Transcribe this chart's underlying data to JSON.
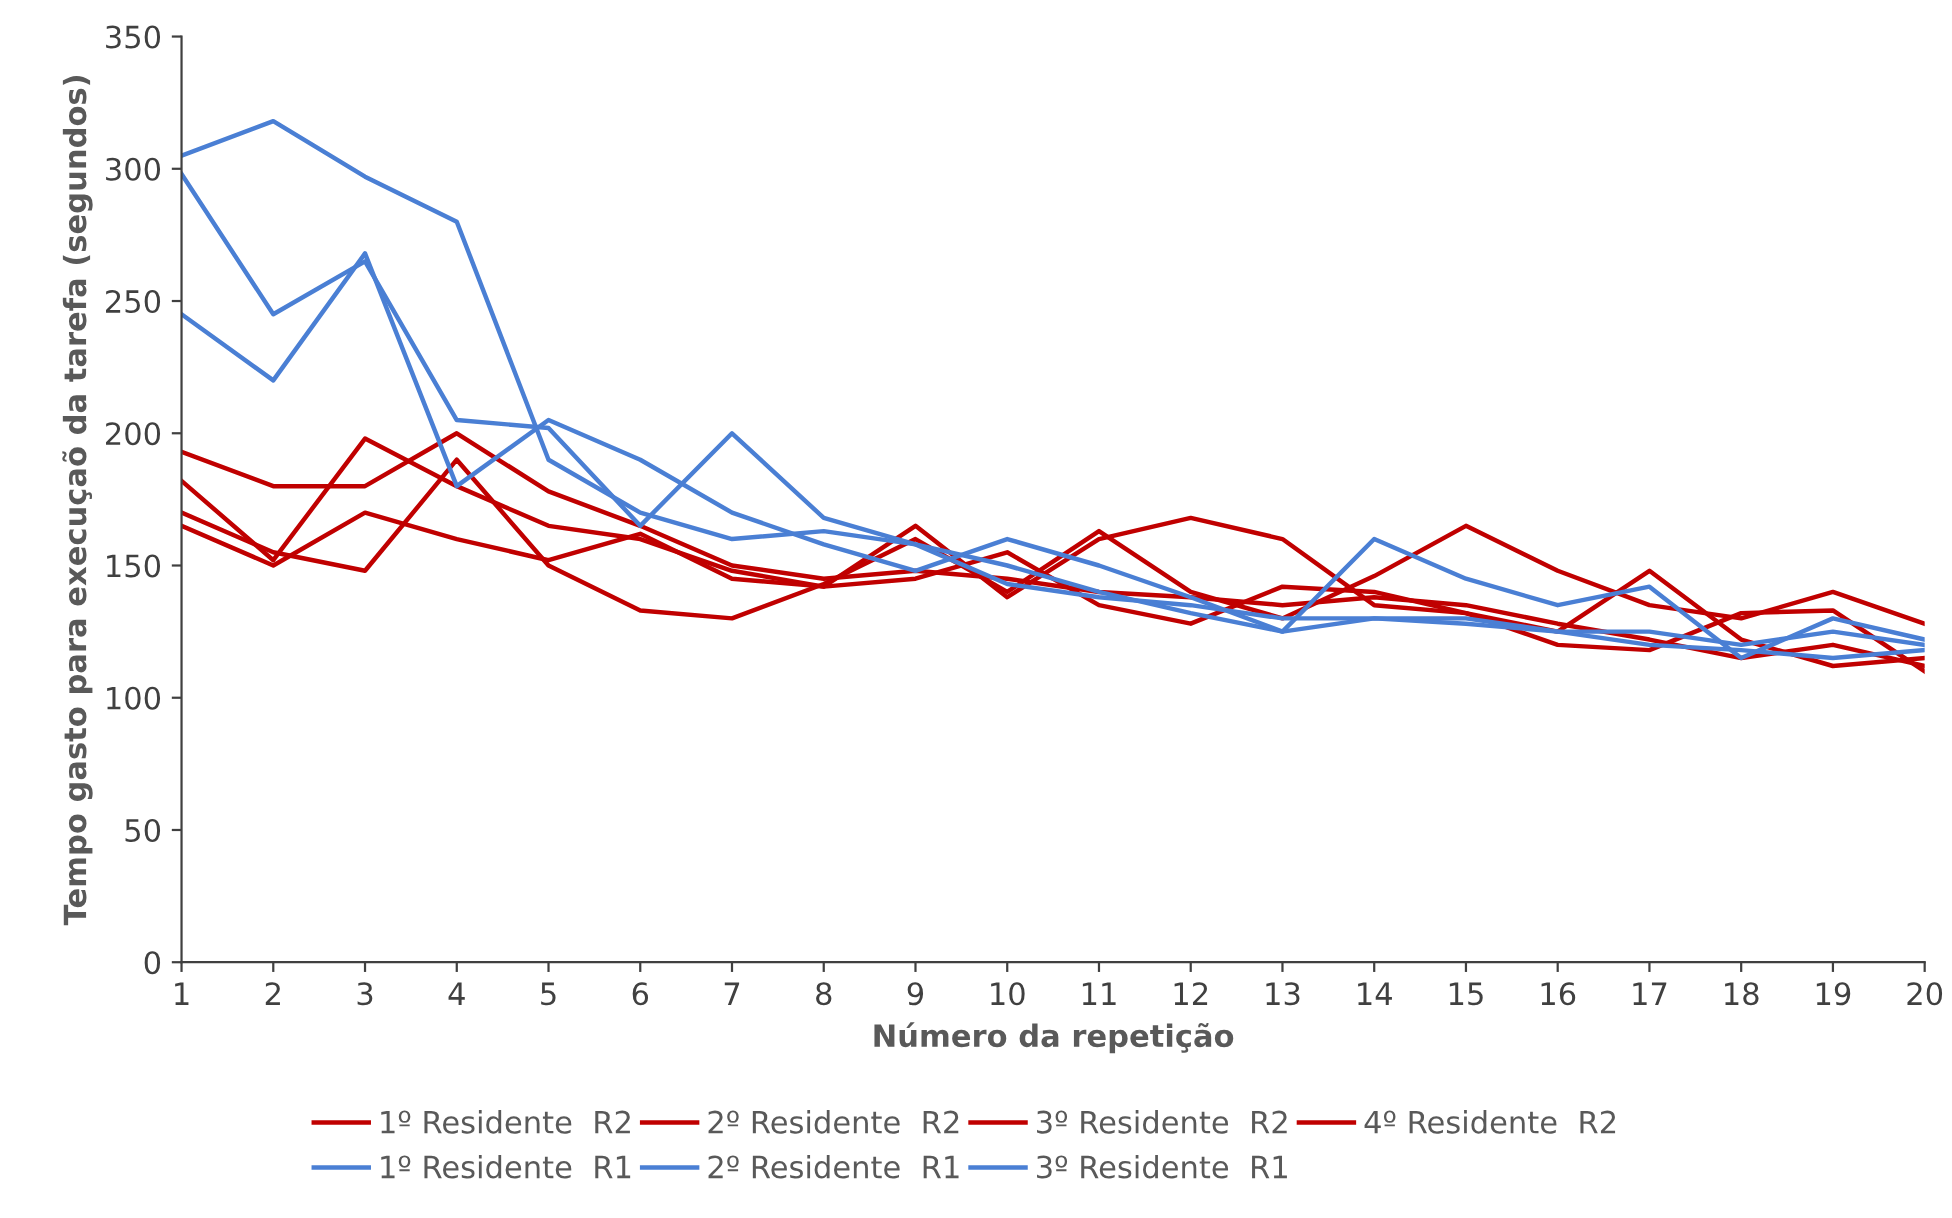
{
  "chart_data": {
    "type": "line",
    "xlabel": "Número da repetição",
    "ylabel": "Tempo gasto para execuçaõ da tarefa (segundos)",
    "x": [
      1,
      2,
      3,
      4,
      5,
      6,
      7,
      8,
      9,
      10,
      11,
      12,
      13,
      14,
      15,
      16,
      17,
      18,
      19,
      20
    ],
    "xlim": [
      1,
      20
    ],
    "xticks": [
      1,
      2,
      3,
      4,
      5,
      6,
      7,
      8,
      9,
      10,
      11,
      12,
      13,
      14,
      15,
      16,
      17,
      18,
      19,
      20
    ],
    "ylim": [
      0,
      350
    ],
    "yticks": [
      0,
      50,
      100,
      150,
      200,
      250,
      300,
      350
    ],
    "grid": false,
    "legend": "bottom",
    "marker": "none",
    "line_style": "solid",
    "series": [
      {
        "name": "1º Residente  R2",
        "color": "#c00000",
        "values": [
          193,
          180,
          180,
          200,
          178,
          165,
          150,
          145,
          148,
          145,
          140,
          138,
          135,
          138,
          135,
          128,
          122,
          115,
          120,
          112
        ]
      },
      {
        "name": "2º Residente  R2",
        "color": "#c00000",
        "values": [
          182,
          152,
          198,
          180,
          165,
          160,
          148,
          142,
          165,
          138,
          160,
          168,
          160,
          135,
          132,
          125,
          148,
          122,
          112,
          115
        ]
      },
      {
        "name": "3º Residente  R2",
        "color": "#c00000",
        "values": [
          170,
          155,
          148,
          190,
          150,
          133,
          130,
          143,
          160,
          140,
          163,
          140,
          130,
          146,
          165,
          148,
          135,
          130,
          140,
          128
        ]
      },
      {
        "name": "4º Residente  R2",
        "color": "#c00000",
        "values": [
          165,
          150,
          170,
          160,
          152,
          162,
          145,
          142,
          145,
          155,
          135,
          128,
          142,
          140,
          132,
          120,
          118,
          132,
          133,
          110
        ]
      },
      {
        "name": "1º Residente  R1",
        "color": "#4a7fd4",
        "values": [
          305,
          318,
          297,
          280,
          190,
          170,
          160,
          163,
          158,
          150,
          140,
          132,
          125,
          130,
          128,
          125,
          120,
          118,
          115,
          118
        ]
      },
      {
        "name": "2º Residente  R1",
        "color": "#4a7fd4",
        "values": [
          298,
          245,
          265,
          205,
          202,
          165,
          200,
          168,
          158,
          143,
          138,
          135,
          130,
          130,
          130,
          125,
          125,
          120,
          125,
          120
        ]
      },
      {
        "name": "3º Residente  R1",
        "color": "#4a7fd4",
        "values": [
          245,
          220,
          268,
          180,
          205,
          190,
          170,
          158,
          148,
          160,
          150,
          138,
          125,
          160,
          145,
          135,
          142,
          115,
          130,
          122
        ]
      }
    ]
  }
}
